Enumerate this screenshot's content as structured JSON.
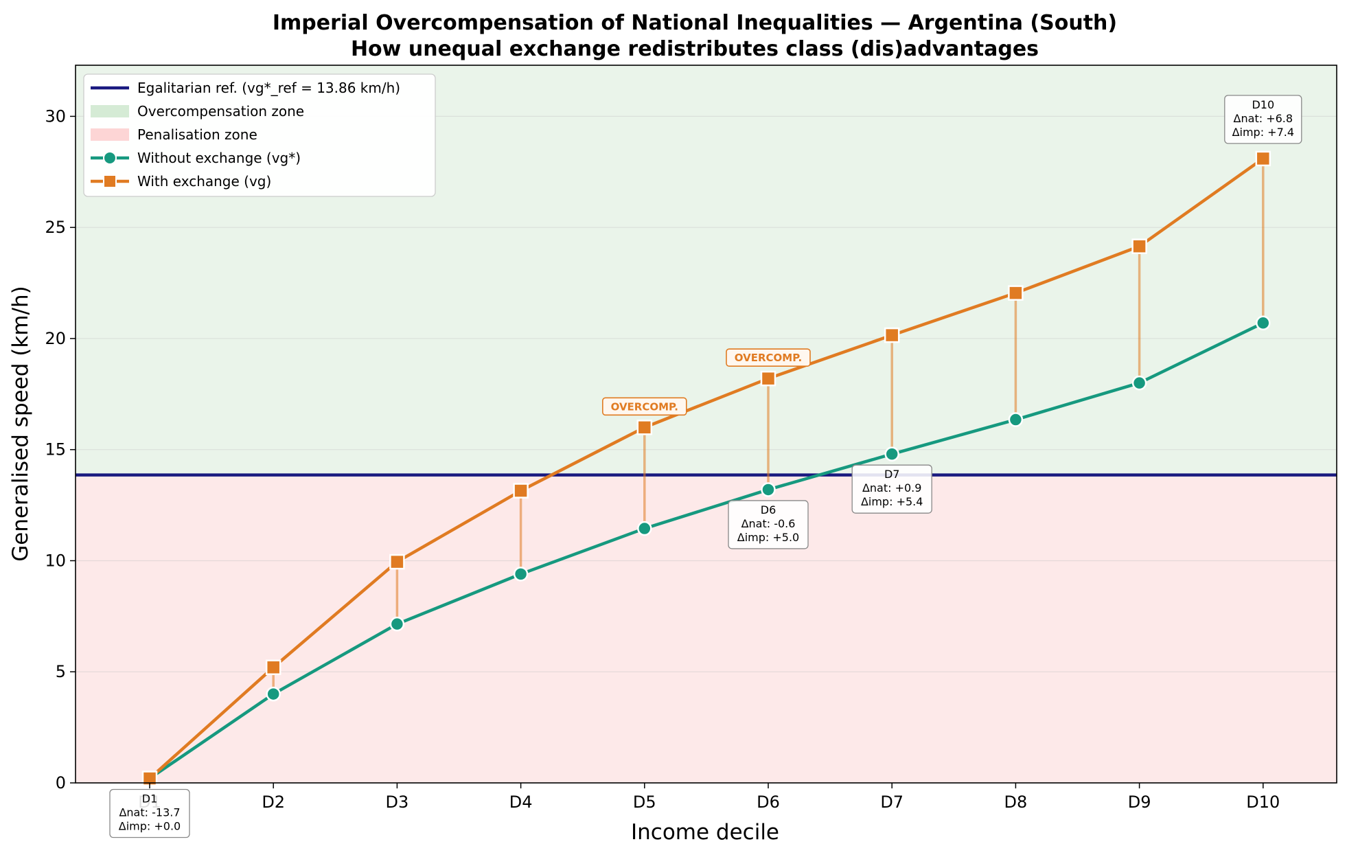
{
  "chart_data": {
    "type": "line",
    "title": "Imperial Overcompensation of National Inequalities — Argentina (South)",
    "subtitle": "How unequal exchange redistributes class (dis)advantages",
    "xlabel": "Income decile",
    "ylabel": "Generalised speed (km/h)",
    "categories": [
      "D1",
      "D2",
      "D3",
      "D4",
      "D5",
      "D6",
      "D7",
      "D8",
      "D9",
      "D10"
    ],
    "ylim": [
      0,
      32.3
    ],
    "yticks": [
      0,
      5,
      10,
      15,
      20,
      25,
      30
    ],
    "grid": "horizontal",
    "legend_position": "top-left",
    "reference": {
      "value": 13.86,
      "label": "Egalitarian ref. (vg*_ref = 13.86 km/h)",
      "color": "#1a1a80"
    },
    "zones": [
      {
        "label": "Overcompensation zone",
        "color": "#d5ebd5",
        "fill": "#eaf4ea"
      },
      {
        "label": "Penalisation zone",
        "color": "#fdd5d5",
        "fill": "#fde9e9"
      }
    ],
    "series": [
      {
        "name": "Without exchange (vg*)",
        "color": "#16997f",
        "marker": "circle",
        "values": [
          0.2,
          4.0,
          7.15,
          9.4,
          11.45,
          13.2,
          14.8,
          16.35,
          18.0,
          20.7
        ]
      },
      {
        "name": "With exchange (vg)",
        "color": "#e07b22",
        "marker": "square",
        "values": [
          0.2,
          5.2,
          9.95,
          13.15,
          16.0,
          18.2,
          20.15,
          22.05,
          24.15,
          28.1
        ]
      }
    ],
    "annotations": [
      {
        "decile": "D1",
        "lines": [
          "D1",
          "Δnat: -13.7",
          "Δimp: +0.0"
        ],
        "position": "below"
      },
      {
        "decile": "D6",
        "lines": [
          "D6",
          "Δnat: -0.6",
          "Δimp: +5.0"
        ],
        "position": "below"
      },
      {
        "decile": "D7",
        "lines": [
          "D7",
          "Δnat: +0.9",
          "Δimp: +5.4"
        ],
        "position": "below"
      },
      {
        "decile": "D10",
        "lines": [
          "D10",
          "Δnat: +6.8",
          "Δimp: +7.4"
        ],
        "position": "above"
      }
    ],
    "flags": [
      {
        "decile": "D5",
        "text": "OVERCOMP."
      },
      {
        "decile": "D6",
        "text": "OVERCOMP."
      }
    ]
  }
}
